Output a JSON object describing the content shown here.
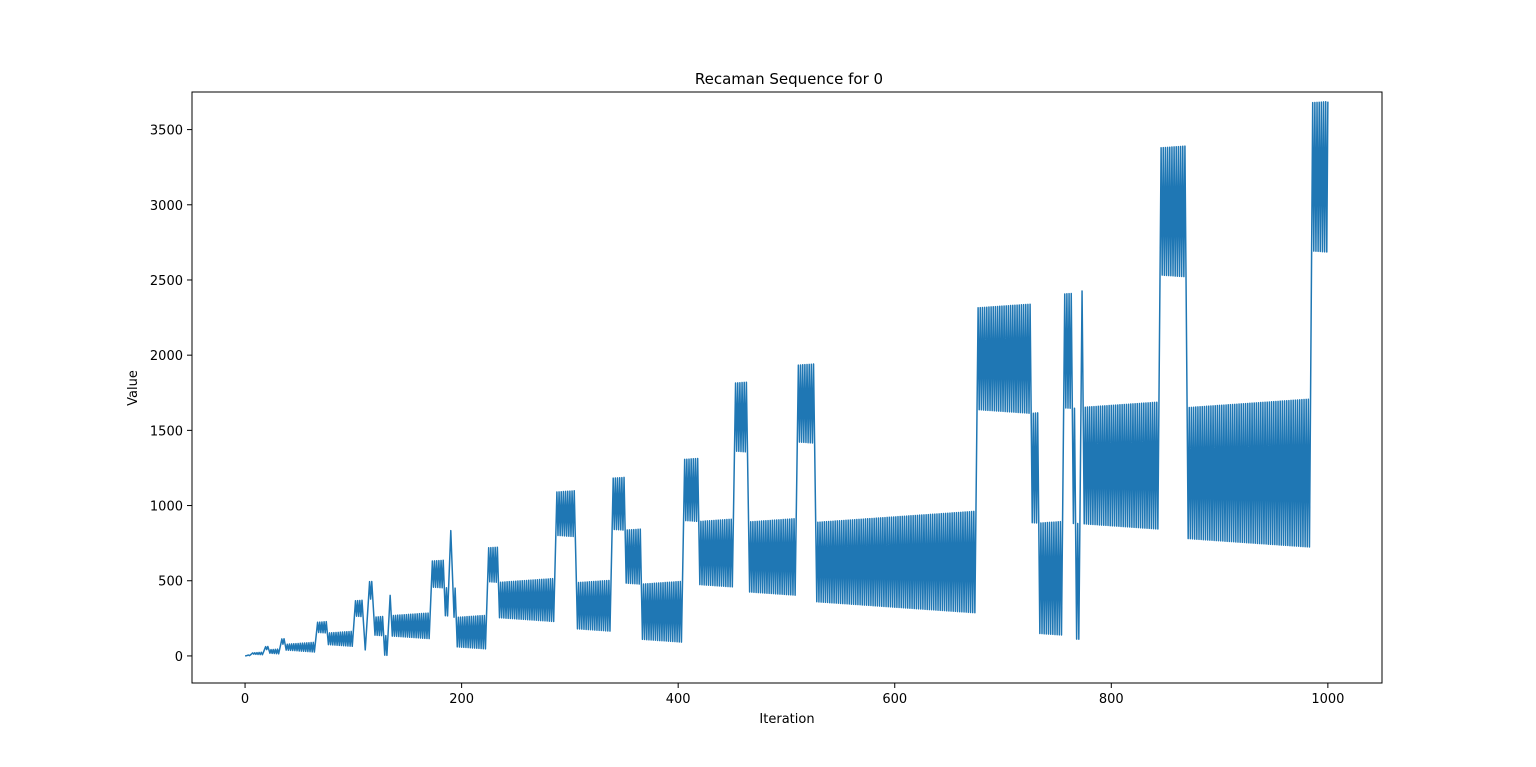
{
  "chart_data": {
    "type": "line",
    "title": "Recaman Sequence for 0",
    "xlabel": "Iteration",
    "ylabel": "Value",
    "xlim": [
      -49,
      1050
    ],
    "ylim": [
      -180,
      3750
    ],
    "xticks": [
      0,
      200,
      400,
      600,
      800,
      1000
    ],
    "yticks": [
      0,
      500,
      1000,
      1500,
      2000,
      2500,
      3000,
      3500
    ],
    "grid": false,
    "series": [
      {
        "color": "#1f77b4",
        "sequence_rule": "a(0)=0; a(n)=a(n-1)-n if positive and not already in sequence, else a(n-1)+n",
        "start": 0,
        "n_points": 1001,
        "x_range": [
          0,
          1000
        ]
      }
    ]
  }
}
